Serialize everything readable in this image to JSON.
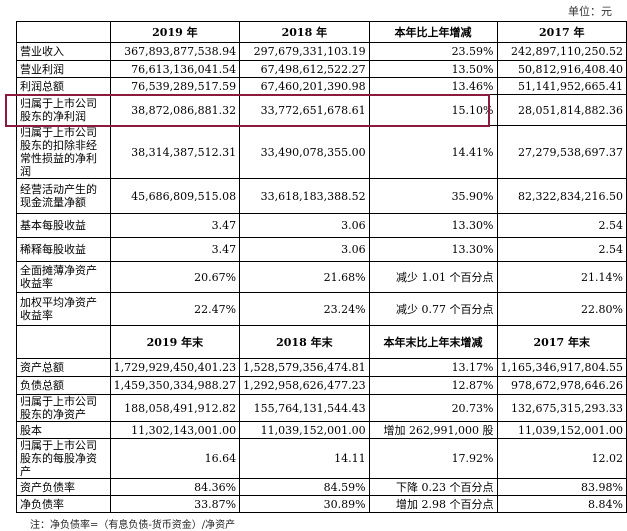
{
  "unit_label": "单位：元",
  "header1": [
    "",
    "2019 年",
    "2018 年",
    "本年比上年增减",
    "2017 年"
  ],
  "block1": [
    {
      "label": "营业收入",
      "v2019": "367,893,877,538.94",
      "v2018": "297,679,331,103.19",
      "change": "23.59%",
      "v2017": "242,897,110,250.52"
    },
    {
      "label": "营业利润",
      "v2019": "76,613,136,041.54",
      "v2018": "67,498,612,522.27",
      "change": "13.50%",
      "v2017": "50,812,916,408.40"
    },
    {
      "label": "利润总额",
      "v2019": "76,539,289,517.59",
      "v2018": "67,460,201,390.98",
      "change": "13.46%",
      "v2017": "51,141,952,665.41"
    },
    {
      "label": "归属于上市公司股东的净利润",
      "v2019": "38,872,086,881.32",
      "v2018": "33,772,651,678.61",
      "change": "15.10%",
      "v2017": "28,051,814,882.36"
    },
    {
      "label": "归属于上市公司股东的扣除非经常性损益的净利润",
      "v2019": "38,314,387,512.31",
      "v2018": "33,490,078,355.00",
      "change": "14.41%",
      "v2017": "27,279,538,697.37"
    },
    {
      "label": "经营活动产生的现金流量净额",
      "v2019": "45,686,809,515.08",
      "v2018": "33,618,183,388.52",
      "change": "35.90%",
      "v2017": "82,322,834,216.50"
    },
    {
      "label": "基本每股收益",
      "v2019": "3.47",
      "v2018": "3.06",
      "change": "13.30%",
      "v2017": "2.54"
    },
    {
      "label": "稀释每股收益",
      "v2019": "3.47",
      "v2018": "3.06",
      "change": "13.30%",
      "v2017": "2.54"
    },
    {
      "label": "全面摊薄净资产收益率",
      "v2019": "20.67%",
      "v2018": "21.68%",
      "change": "减少 1.01 个百分点",
      "v2017": "21.14%"
    },
    {
      "label": "加权平均净资产收益率",
      "v2019": "22.47%",
      "v2018": "23.24%",
      "change": "减少 0.77 个百分点",
      "v2017": "22.80%"
    }
  ],
  "header2": [
    "",
    "2019 年末",
    "2018 年末",
    "本年末比上年末增减",
    "2017 年末"
  ],
  "block2": [
    {
      "label": "资产总额",
      "v2019": "1,729,929,450,401.23",
      "v2018": "1,528,579,356,474.81",
      "change": "13.17%",
      "v2017": "1,165,346,917,804.55"
    },
    {
      "label": "负债总额",
      "v2019": "1,459,350,334,988.27",
      "v2018": "1,292,958,626,477.23",
      "change": "12.87%",
      "v2017": "978,672,978,646.26"
    },
    {
      "label": "归属于上市公司股东的净资产",
      "v2019": "188,058,491,912.82",
      "v2018": "155,764,131,544.43",
      "change": "20.73%",
      "v2017": "132,675,315,293.33"
    },
    {
      "label": "股本",
      "v2019": "11,302,143,001.00",
      "v2018": "11,039,152,001.00",
      "change": "增加 262,991,000 股",
      "v2017": "11,039,152,001.00"
    },
    {
      "label": "归属于上市公司股东的每股净资产",
      "v2019": "16.64",
      "v2018": "14.11",
      "change": "17.92%",
      "v2017": "12.02"
    },
    {
      "label": "资产负债率",
      "v2019": "84.36%",
      "v2018": "84.59%",
      "change": "下降 0.23 个百分点",
      "v2017": "83.98%"
    },
    {
      "label": "净负债率",
      "v2019": "33.87%",
      "v2018": "30.89%",
      "change": "增加 2.98 个百分点",
      "v2017": "8.84%"
    }
  ],
  "footnote": "注：净负债率=（有息负债-货币资金）/净资产"
}
